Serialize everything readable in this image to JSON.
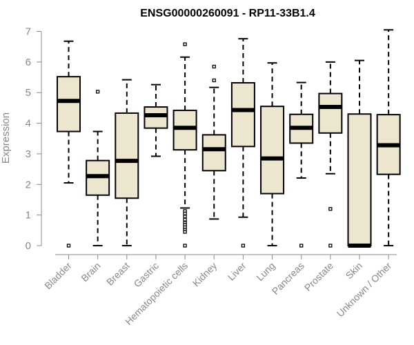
{
  "chart_data": {
    "type": "box",
    "title": "ENSG00000260091 - RP11-33B1.4",
    "xlabel": "",
    "ylabel": "Expression",
    "ylim": [
      0,
      7
    ],
    "yticks": [
      "0",
      "1",
      "2",
      "3",
      "4",
      "5",
      "6",
      "7"
    ],
    "box_color": "#ede6cf",
    "categories": [
      "Bladder",
      "Brain",
      "Breast",
      "Gastric",
      "Hematopoietic cells",
      "Kidney",
      "Liver",
      "Lung",
      "Pancreas",
      "Prostate",
      "Skin",
      "Unknown / Other"
    ],
    "boxes": [
      {
        "name": "Bladder",
        "min": 2.05,
        "q1": 3.73,
        "median": 4.73,
        "q3": 5.52,
        "max": 6.68,
        "outliers": [
          0
        ]
      },
      {
        "name": "Brain",
        "min": 0,
        "q1": 1.65,
        "median": 2.27,
        "q3": 2.78,
        "max": 3.73,
        "outliers": [
          5.03
        ]
      },
      {
        "name": "Breast",
        "min": 0,
        "q1": 1.55,
        "median": 2.77,
        "q3": 4.33,
        "max": 5.42,
        "outliers": []
      },
      {
        "name": "Gastric",
        "min": 2.92,
        "q1": 3.84,
        "median": 4.26,
        "q3": 4.53,
        "max": 5.26,
        "outliers": []
      },
      {
        "name": "Hematopoietic cells",
        "min": 1.23,
        "q1": 3.13,
        "median": 3.85,
        "q3": 4.42,
        "max": 6.16,
        "outliers": [
          6.58,
          1.13,
          1.05,
          0.95,
          0.85,
          0.75,
          0.68,
          0.6,
          0.52,
          0.45,
          0
        ]
      },
      {
        "name": "Kidney",
        "min": 0.87,
        "q1": 2.45,
        "median": 3.15,
        "q3": 3.62,
        "max": 5.17,
        "outliers": [
          5.85,
          5.4
        ]
      },
      {
        "name": "Liver",
        "min": 0.93,
        "q1": 3.24,
        "median": 4.43,
        "q3": 5.32,
        "max": 6.76,
        "outliers": [
          0
        ]
      },
      {
        "name": "Lung",
        "min": 0,
        "q1": 1.7,
        "median": 2.85,
        "q3": 4.55,
        "max": 5.97,
        "outliers": []
      },
      {
        "name": "Pancreas",
        "min": 2.21,
        "q1": 3.35,
        "median": 3.85,
        "q3": 4.29,
        "max": 5.33,
        "outliers": [
          0
        ]
      },
      {
        "name": "Prostate",
        "min": 2.35,
        "q1": 3.68,
        "median": 4.53,
        "q3": 4.97,
        "max": 6.0,
        "outliers": [
          1.2,
          0
        ]
      },
      {
        "name": "Skin",
        "min": 0,
        "q1": 0,
        "median": 0,
        "q3": 4.3,
        "max": 6.05,
        "outliers": []
      },
      {
        "name": "Unknown / Other",
        "min": 0,
        "q1": 2.33,
        "median": 3.28,
        "q3": 4.28,
        "max": 7.05,
        "outliers": []
      }
    ]
  }
}
